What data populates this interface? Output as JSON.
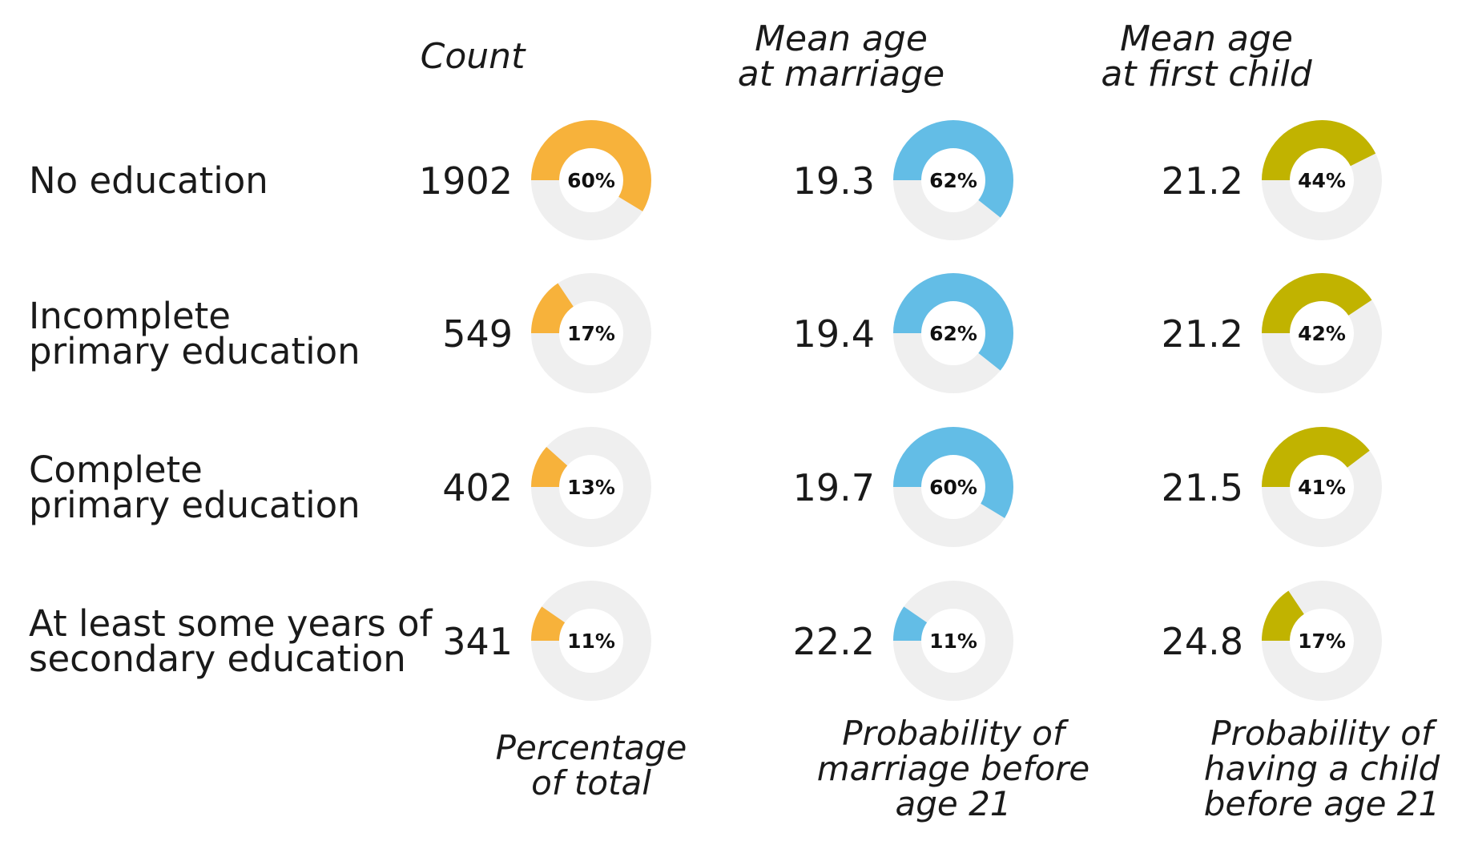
{
  "chart_data": {
    "type": "donut-table",
    "headers": {
      "count": "Count",
      "marriage": [
        "Mean age",
        "at marriage"
      ],
      "child": [
        "Mean age",
        "at first child"
      ]
    },
    "footers": {
      "pct_total": [
        "Percentage",
        "of total"
      ],
      "marriage": [
        "Probability of",
        "marriage before",
        "age 21"
      ],
      "child": [
        "Probability of",
        "having a child",
        "before age 21"
      ]
    },
    "colors": {
      "pct_total": "#f7b23b",
      "marriage": "#63bde6",
      "child": "#c1b300",
      "track": "#efefef"
    },
    "rows": [
      {
        "label": [
          "No education"
        ],
        "count": "1902",
        "pct_total": 60,
        "mean_age_marriage": "19.3",
        "prob_marriage": 62,
        "mean_age_child": "21.2",
        "prob_child": 44
      },
      {
        "label": [
          "Incomplete",
          "primary education"
        ],
        "count": "549",
        "pct_total": 17,
        "mean_age_marriage": "19.4",
        "prob_marriage": 62,
        "mean_age_child": "21.2",
        "prob_child": 42
      },
      {
        "label": [
          "Complete",
          "primary education"
        ],
        "count": "402",
        "pct_total": 13,
        "mean_age_marriage": "19.7",
        "prob_marriage": 60,
        "mean_age_child": "21.5",
        "prob_child": 41
      },
      {
        "label": [
          "At least some years of",
          "secondary education"
        ],
        "count": "341",
        "pct_total": 11,
        "mean_age_marriage": "22.2",
        "prob_marriage": 11,
        "mean_age_child": "24.8",
        "prob_child": 17
      }
    ]
  }
}
